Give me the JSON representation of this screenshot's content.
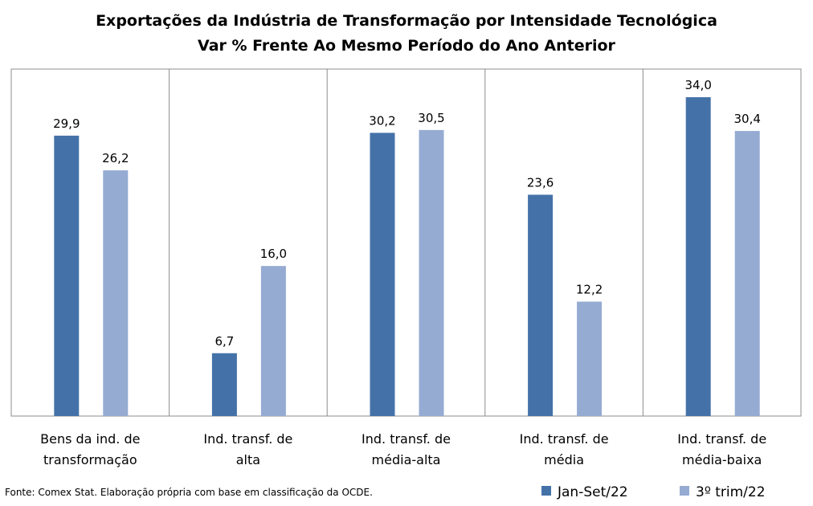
{
  "chart_data": {
    "type": "bar",
    "title": "Exportações da Indústria de Transformação por Intensidade Tecnológica",
    "subtitle": "Var % Frente Ao Mesmo Período do Ano Anterior",
    "categories": [
      [
        "Bens da ind. de",
        "transformação"
      ],
      [
        "Ind. transf. de",
        "alta"
      ],
      [
        "Ind. transf. de",
        "média-alta"
      ],
      [
        "Ind. transf. de",
        "média"
      ],
      [
        "Ind. transf. de",
        "média-baixa"
      ]
    ],
    "series": [
      {
        "name": "Jan-Set/22",
        "color": "#4472a8",
        "values": [
          29.9,
          6.7,
          30.2,
          23.6,
          34.0
        ],
        "labels": [
          "29,9",
          "6,7",
          "30,2",
          "23,6",
          "34,0"
        ]
      },
      {
        "name": "3º trim/22",
        "color": "#95abd2",
        "values": [
          26.2,
          16.0,
          30.5,
          12.2,
          30.4
        ],
        "labels": [
          "26,2",
          "16,0",
          "30,5",
          "12,2",
          "30,4"
        ]
      }
    ],
    "ylim": [
      0,
      37
    ],
    "grid": "vertical category separators",
    "legend": "bottom-right",
    "source": "Fonte: Comex Stat. Elaboração própria com base em classificação da OCDE."
  }
}
